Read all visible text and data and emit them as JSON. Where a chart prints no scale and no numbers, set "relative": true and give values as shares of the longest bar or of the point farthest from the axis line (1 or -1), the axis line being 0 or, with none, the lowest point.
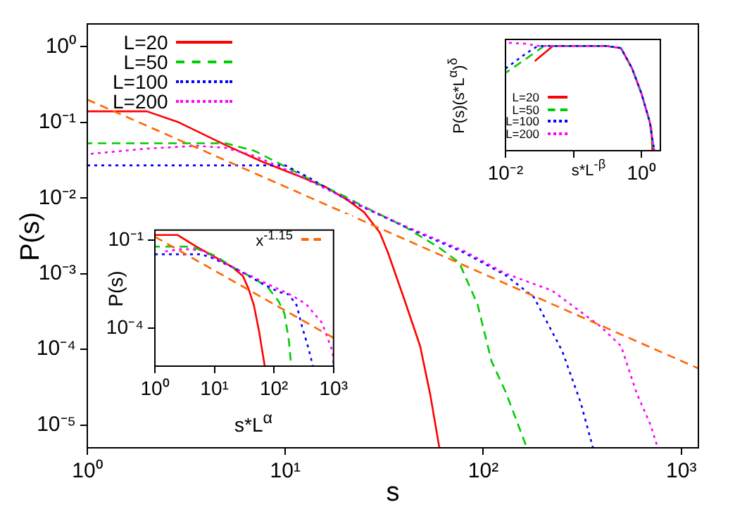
{
  "chart_data": [
    {
      "type": "line",
      "xlabel": "s",
      "ylabel": "P(s)",
      "log": "xy",
      "legend": "top left",
      "marker": "none",
      "xlim": [
        1,
        1220
      ],
      "ylim": [
        5e-06,
        2
      ],
      "xticks": [
        {
          "value": 1,
          "label": "10⁰"
        },
        {
          "value": 10,
          "label": "10¹"
        },
        {
          "value": 100,
          "label": "10²"
        },
        {
          "value": 1000,
          "label": "10³"
        }
      ],
      "yticks": [
        {
          "value": 1e-05,
          "label": "10⁻⁵"
        },
        {
          "value": 0.0001,
          "label": "10⁻⁴"
        },
        {
          "value": 0.001,
          "label": "10⁻³"
        },
        {
          "value": 0.01,
          "label": "10⁻²"
        },
        {
          "value": 0.1,
          "label": "10⁻¹"
        },
        {
          "value": 1,
          "label": "10⁰"
        }
      ],
      "series": [
        {
          "name": "L=20",
          "color": "#ff0000",
          "line_style": "solid",
          "x": [
            1,
            2,
            2.9,
            5,
            7.7,
            12,
            16,
            20.5,
            25,
            30,
            33,
            40,
            48,
            54,
            60
          ],
          "values": [
            0.14,
            0.14,
            0.1,
            0.05,
            0.03,
            0.019,
            0.014,
            0.0095,
            0.0065,
            0.0035,
            0.0019,
            0.00045,
            0.00011,
            2.5e-05,
            5e-06
          ]
        },
        {
          "name": "L=50",
          "color": "#00cc00",
          "line_style": "dashed",
          "x": [
            1,
            5,
            7,
            10,
            15,
            20,
            25,
            40,
            60,
            75.6,
            93.6,
            110,
            130,
            166
          ],
          "values": [
            0.053,
            0.053,
            0.042,
            0.026,
            0.015,
            0.0105,
            0.0077,
            0.0042,
            0.0022,
            0.0014,
            0.00039,
            7e-05,
            2.7e-05,
            5e-06
          ]
        },
        {
          "name": "L=100",
          "color": "#0000ff",
          "line_style": "dotted",
          "x": [
            1,
            10,
            13,
            20,
            40,
            80,
            130,
            180,
            250,
            310,
            358
          ],
          "values": [
            0.027,
            0.027,
            0.019,
            0.0098,
            0.0042,
            0.0019,
            0.00095,
            0.00049,
            9.6e-05,
            2e-05,
            5e-06
          ]
        },
        {
          "name": "L=200",
          "color": "#ff00ff",
          "line_style": "dotted",
          "x": [
            1,
            2,
            3.6,
            5,
            7,
            10,
            20,
            40,
            80,
            130,
            222,
            392,
            497,
            593,
            700,
            760
          ],
          "values": [
            0.038,
            0.045,
            0.049,
            0.046,
            0.036,
            0.024,
            0.01,
            0.0043,
            0.002,
            0.001,
            0.0006,
            0.0002,
            0.00011,
            2.7e-05,
            1e-05,
            5e-06
          ]
        },
        {
          "color": "#ff6600",
          "line_style": "dashed",
          "x": [
            1,
            1220
          ],
          "values": [
            0.2,
            5.6e-05
          ]
        }
      ]
    },
    {
      "type": "line",
      "xlabel": "s*L$^{-β}$",
      "ylabel": "P(s)(s*L$^{α}$)$^{δ}$",
      "log": "x",
      "legend": "bottom",
      "marker": "none",
      "relative": true,
      "xlim": [
        0.01,
        1.9
      ],
      "xticks": [
        {
          "value": 0.01,
          "label": "10⁻²"
        },
        {
          "value": 0.1,
          "label": null
        },
        {
          "value": 1,
          "label": "10⁰"
        }
      ],
      "series": [
        {
          "name": "L=20",
          "color": "#ff0000",
          "line_style": "solid",
          "x": [
            0.027,
            0.05,
            0.1,
            0.3,
            0.5,
            0.73,
            1,
            1.32,
            1.4,
            1.45
          ],
          "values": [
            0.83,
            0.97,
            0.97,
            0.97,
            0.95,
            0.76,
            0.53,
            0.27,
            0.2,
            0
          ]
        },
        {
          "name": "L=50",
          "color": "#00cc00",
          "line_style": "dashed",
          "x": [
            0.01,
            0.02,
            0.037,
            0.1,
            0.3,
            0.5,
            0.73,
            1,
            1.32,
            1.5
          ],
          "values": [
            0.72,
            0.85,
            0.97,
            0.97,
            0.97,
            0.95,
            0.76,
            0.53,
            0.27,
            0
          ]
        },
        {
          "name": "L=100",
          "color": "#0000ff",
          "line_style": "dotted",
          "x": [
            0.01,
            0.02,
            0.03,
            0.1,
            0.3,
            0.5,
            0.73,
            1,
            1.32,
            1.55
          ],
          "values": [
            0.76,
            0.9,
            0.97,
            0.97,
            0.97,
            0.95,
            0.76,
            0.53,
            0.27,
            0
          ]
        },
        {
          "name": "L=200",
          "color": "#ff00ff",
          "line_style": "dotted",
          "x": [
            0.01,
            0.02,
            0.03,
            0.1,
            0.3,
            0.5,
            0.73,
            1,
            1.32,
            1.55
          ],
          "values": [
            1,
            0.99,
            0.97,
            0.97,
            0.97,
            0.95,
            0.76,
            0.53,
            0.27,
            0
          ]
        }
      ]
    },
    {
      "type": "line",
      "xlabel": "s*L$^{α}$",
      "ylabel": "P(s)",
      "log": "xy",
      "legend": "top right",
      "marker": "none",
      "xlim": [
        1,
        1000
      ],
      "ylim": [
        5e-06,
        0.22
      ],
      "xticks": [
        {
          "value": 1,
          "label": "10⁰"
        },
        {
          "value": 10,
          "label": "10¹"
        },
        {
          "value": 100,
          "label": "10²"
        },
        {
          "value": 1000,
          "label": "10³"
        }
      ],
      "yticks": [
        {
          "value": 0.0001,
          "label": "10⁻⁴"
        },
        {
          "value": 0.1,
          "label": "10⁻¹"
        }
      ],
      "series": [
        {
          "color": "#ff0000",
          "line_style": "solid",
          "x": [
            1,
            2.4,
            5,
            10,
            20,
            30,
            37,
            46,
            56,
            64,
            70
          ],
          "values": [
            0.15,
            0.15,
            0.06,
            0.027,
            0.012,
            0.006,
            0.0023,
            0.0006,
            8e-05,
            1.5e-05,
            5e-06
          ]
        },
        {
          "color": "#00cc00",
          "line_style": "dashed",
          "x": [
            1,
            4,
            6,
            10,
            22,
            50,
            81,
            120,
            150,
            177,
            195
          ],
          "values": [
            0.06,
            0.06,
            0.045,
            0.03,
            0.011,
            0.0045,
            0.0023,
            0.0008,
            0.00031,
            4e-05,
            5e-06
          ]
        },
        {
          "color": "#0000ff",
          "line_style": "dotted",
          "x": [
            1,
            6,
            9,
            22,
            60,
            120,
            177,
            240,
            297,
            380,
            450
          ],
          "values": [
            0.033,
            0.033,
            0.025,
            0.011,
            0.0035,
            0.0017,
            0.0014,
            0.0006,
            0.00011,
            2e-05,
            5e-06
          ]
        },
        {
          "color": "#ff00ff",
          "line_style": "dotted",
          "x": [
            1.3,
            3,
            6,
            10,
            22,
            80,
            200,
            347,
            640,
            970,
            1000
          ],
          "values": [
            0.04,
            0.05,
            0.045,
            0.025,
            0.011,
            0.0031,
            0.0013,
            0.00065,
            0.00015,
            1.5e-05,
            5e-06
          ]
        },
        {
          "name": "x$^{-1.15}$",
          "color": "#ff6600",
          "line_style": "dashed",
          "x": [
            1,
            1000
          ],
          "values": [
            0.13,
            4.6e-05
          ]
        }
      ]
    }
  ]
}
